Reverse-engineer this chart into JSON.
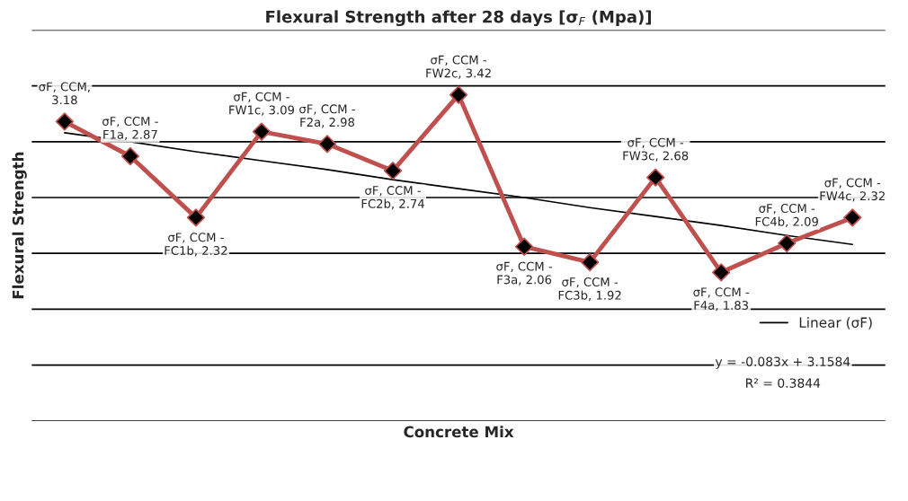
{
  "chart_data": {
    "type": "line",
    "title": "Flexural Strength after 28 days [σ$_{F}$ (Mpa)]",
    "xlabel": "Concrete Mix",
    "ylabel": "Flexural Strength",
    "categories": [
      null,
      null,
      null,
      null,
      null,
      null,
      null,
      null,
      null,
      null,
      null,
      null,
      null
    ],
    "ylim": [
      0.5,
      4
    ],
    "yticks": [
      {
        "value": 0.5,
        "label": null
      },
      {
        "value": 1,
        "label": null
      },
      {
        "value": 1.5,
        "label": null
      },
      {
        "value": 2,
        "label": null
      },
      {
        "value": 2.5,
        "label": null
      },
      {
        "value": 3,
        "label": null
      },
      {
        "value": 3.5,
        "label": null
      },
      {
        "value": 4,
        "label": null
      }
    ],
    "grid": "y",
    "tick_labels": false,
    "legend": "right",
    "series": [
      {
        "values": [
          3.18,
          2.87,
          2.32,
          3.09,
          2.98,
          2.74,
          3.42,
          2.06,
          1.92,
          2.68,
          1.83,
          2.09,
          2.32
        ],
        "color": "#c0504d",
        "marker": "diamond",
        "value_labels": [
          "σF, CCM, 3.18",
          "σF, CCM - F1a, 2.87",
          "σF, CCM - FC1b, 2.32",
          "σF, CCM - FW1c, 3.09",
          "σF, CCM - F2a, 2.98",
          "σF, CCM - FC2b, 2.74",
          "σF, CCM - FW2c, 3.42",
          "σF, CCM - F3a, 2.06",
          "σF, CCM - FC3b, 1.92",
          "σF, CCM - FW3c, 2.68",
          "σF, CCM - F4a, 1.83",
          "σF, CCM - FC4b, 2.09",
          "σF, CCM - FW4c, 2.32"
        ]
      },
      {
        "name": "Linear (σF)",
        "type": "line",
        "values": [
          3.08,
          3.0,
          2.91,
          2.83,
          2.75,
          2.66,
          2.58,
          2.5,
          2.41,
          2.33,
          2.25,
          2.16,
          2.08
        ],
        "color": "#000000"
      }
    ],
    "annotations": [
      "y = -0.083x + 3.1584",
      "R² = 0.3844"
    ]
  }
}
